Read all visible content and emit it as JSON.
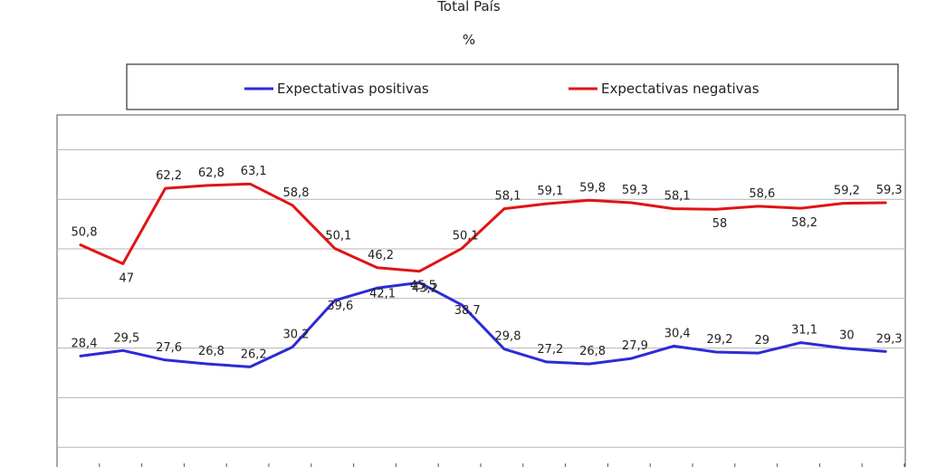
{
  "chart_data": {
    "type": "line",
    "title": "Total País",
    "subtitle": "%",
    "ylim": [
      0,
      70
    ],
    "grid": true,
    "legend_position": "top",
    "categories_count": 20,
    "series": [
      {
        "name": "Expectativas positivas",
        "color": "#2b2bd6",
        "values": [
          28.4,
          29.5,
          27.6,
          26.8,
          26.2,
          30.2,
          39.6,
          42.1,
          43.2,
          38.7,
          29.8,
          27.2,
          26.8,
          27.9,
          30.4,
          29.2,
          29,
          31.1,
          30,
          29.3
        ],
        "labels": [
          "28,4",
          "29,5",
          "27,6",
          "26,8",
          "26,2",
          "30,2",
          "39,6",
          "42,1",
          "43,2",
          "38,7",
          "29,8",
          "27,2",
          "26,8",
          "27,9",
          "30,4",
          "29,2",
          "29",
          "31,1",
          "30",
          "29,3"
        ]
      },
      {
        "name": "Expectativas negativas",
        "color": "#e01414",
        "values": [
          50.8,
          47,
          62.2,
          62.8,
          63.1,
          58.8,
          50.1,
          46.2,
          45.5,
          50.1,
          58.1,
          59.1,
          59.8,
          59.3,
          58.1,
          58,
          58.6,
          58.2,
          59.2,
          59.3
        ],
        "labels": [
          "50,8",
          "47",
          "62,2",
          "62,8",
          "63,1",
          "58,8",
          "50,1",
          "46,2",
          "45,5",
          "50,1",
          "58,1",
          "59,1",
          "59,8",
          "59,3",
          "58,1",
          "58",
          "58,6",
          "58,2",
          "59,2",
          "59,3"
        ]
      }
    ]
  }
}
